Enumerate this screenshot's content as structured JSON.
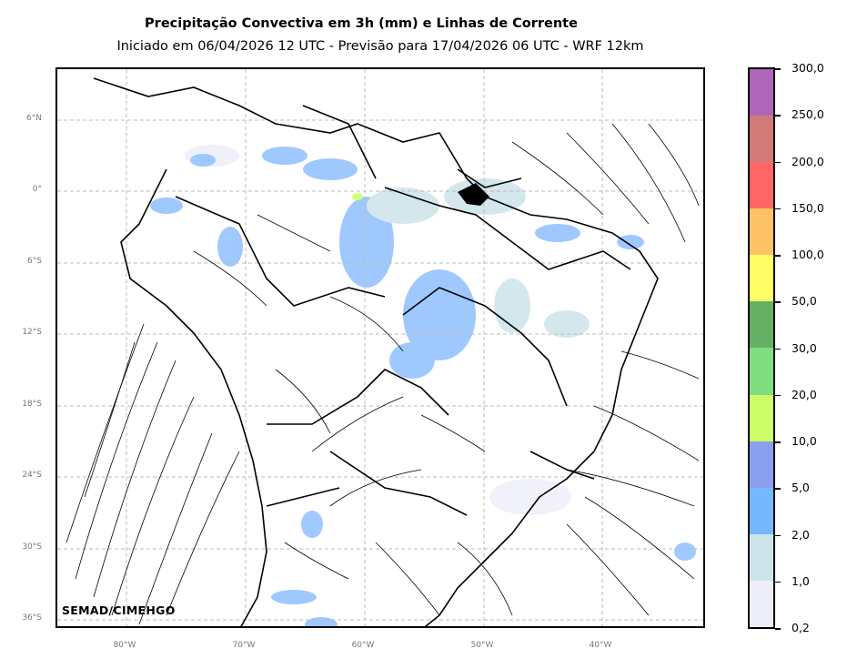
{
  "title": "Precipitação Convectiva em 3h (mm) e Linhas de Corrente",
  "subtitle": "Iniciado em 06/04/2026 12 UTC - Previsão para 17/04/2026 06 UTC - WRF 12km",
  "credit": "SEMAD/CIMEHGO",
  "lat_labels": [
    "6°N",
    "0°",
    "6°S",
    "12°S",
    "18°S",
    "24°S",
    "30°S",
    "36°S"
  ],
  "lon_labels": [
    "80°W",
    "70°W",
    "60°W",
    "50°W",
    "40°W"
  ],
  "colorbar": {
    "labels": [
      "300,0",
      "250,0",
      "200,0",
      "150,0",
      "100,0",
      "50,0",
      "30,0",
      "20,0",
      "10,0",
      "5,0",
      "2,0",
      "1,0",
      "0,2"
    ],
    "colors": [
      "#b066b8",
      "#d17a78",
      "#ff6666",
      "#ffc266",
      "#ffff66",
      "#66b066",
      "#80dd80",
      "#ccff66",
      "#8aa0ee",
      "#75b8ff",
      "#cde3ea",
      "#eeeefa"
    ]
  },
  "colors": {
    "coast": "#000000",
    "grid": "#bbbbbb",
    "streamline": "#000000"
  }
}
